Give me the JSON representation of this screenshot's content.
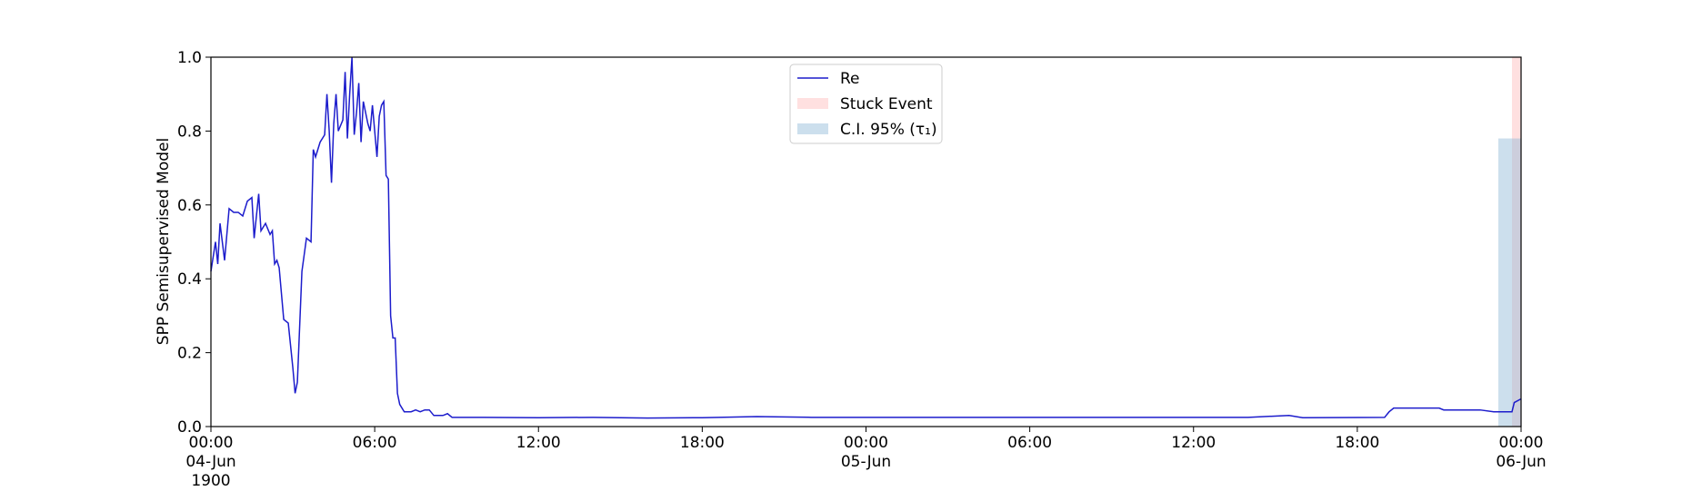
{
  "chart_data": {
    "type": "line",
    "ylabel": "SPP Semisupervised Model",
    "x": [
      "1900-06-04 00:00",
      "1900-06-04 00:10",
      "1900-06-04 00:15",
      "1900-06-04 00:20",
      "1900-06-04 00:30",
      "1900-06-04 00:40",
      "1900-06-04 00:50",
      "1900-06-04 01:00",
      "1900-06-04 01:10",
      "1900-06-04 01:20",
      "1900-06-04 01:30",
      "1900-06-04 01:35",
      "1900-06-04 01:45",
      "1900-06-04 01:50",
      "1900-06-04 02:00",
      "1900-06-04 02:10",
      "1900-06-04 02:15",
      "1900-06-04 02:20",
      "1900-06-04 02:25",
      "1900-06-04 02:30",
      "1900-06-04 02:40",
      "1900-06-04 02:50",
      "1900-06-04 03:00",
      "1900-06-04 03:05",
      "1900-06-04 03:10",
      "1900-06-04 03:20",
      "1900-06-04 03:30",
      "1900-06-04 03:40",
      "1900-06-04 03:45",
      "1900-06-04 03:50",
      "1900-06-04 04:00",
      "1900-06-04 04:10",
      "1900-06-04 04:15",
      "1900-06-04 04:20",
      "1900-06-04 04:25",
      "1900-06-04 04:30",
      "1900-06-04 04:35",
      "1900-06-04 04:40",
      "1900-06-04 04:50",
      "1900-06-04 04:55",
      "1900-06-04 05:00",
      "1900-06-04 05:05",
      "1900-06-04 05:10",
      "1900-06-04 05:15",
      "1900-06-04 05:20",
      "1900-06-04 05:25",
      "1900-06-04 05:30",
      "1900-06-04 05:35",
      "1900-06-04 05:45",
      "1900-06-04 05:50",
      "1900-06-04 05:55",
      "1900-06-04 06:00",
      "1900-06-04 06:05",
      "1900-06-04 06:10",
      "1900-06-04 06:15",
      "1900-06-04 06:20",
      "1900-06-04 06:25",
      "1900-06-04 06:30",
      "1900-06-04 06:35",
      "1900-06-04 06:40",
      "1900-06-04 06:45",
      "1900-06-04 06:50",
      "1900-06-04 06:55",
      "1900-06-04 07:05",
      "1900-06-04 07:20",
      "1900-06-04 07:30",
      "1900-06-04 07:40",
      "1900-06-04 07:50",
      "1900-06-04 08:00",
      "1900-06-04 08:10",
      "1900-06-04 08:30",
      "1900-06-04 08:40",
      "1900-06-04 08:50",
      "1900-06-04 10:00",
      "1900-06-04 12:00",
      "1900-06-04 14:00",
      "1900-06-04 16:00",
      "1900-06-04 18:00",
      "1900-06-04 20:00",
      "1900-06-04 22:00",
      "1900-06-05 00:00",
      "1900-06-05 12:00",
      "1900-06-05 14:00",
      "1900-06-05 15:30",
      "1900-06-05 16:00",
      "1900-06-05 19:00",
      "1900-06-05 19:10",
      "1900-06-05 19:20",
      "1900-06-05 21:00",
      "1900-06-05 21:10",
      "1900-06-05 22:30",
      "1900-06-05 23:00",
      "1900-06-05 23:40",
      "1900-06-05 23:45",
      "1900-06-06 00:00"
    ],
    "series": [
      {
        "name": "Re",
        "color": "#1c1ccc",
        "values": [
          0.42,
          0.5,
          0.44,
          0.55,
          0.45,
          0.59,
          0.58,
          0.58,
          0.57,
          0.61,
          0.62,
          0.51,
          0.63,
          0.53,
          0.55,
          0.52,
          0.53,
          0.44,
          0.45,
          0.43,
          0.29,
          0.28,
          0.16,
          0.09,
          0.12,
          0.42,
          0.51,
          0.5,
          0.75,
          0.73,
          0.77,
          0.79,
          0.9,
          0.8,
          0.66,
          0.82,
          0.9,
          0.8,
          0.83,
          0.96,
          0.78,
          0.9,
          1.0,
          0.79,
          0.85,
          0.93,
          0.77,
          0.88,
          0.82,
          0.8,
          0.87,
          0.8,
          0.73,
          0.84,
          0.87,
          0.88,
          0.68,
          0.67,
          0.3,
          0.24,
          0.24,
          0.09,
          0.06,
          0.04,
          0.04,
          0.045,
          0.04,
          0.045,
          0.045,
          0.03,
          0.03,
          0.035,
          0.025,
          0.025,
          0.024,
          0.025,
          0.023,
          0.024,
          0.027,
          0.025,
          0.025,
          0.025,
          0.025,
          0.03,
          0.024,
          0.025,
          0.04,
          0.05,
          0.05,
          0.045,
          0.045,
          0.04,
          0.04,
          0.065,
          0.075
        ]
      }
    ],
    "spans": [
      {
        "name": "Stuck Event",
        "color": "#ffcccc",
        "x": [
          "1900-06-05 23:40",
          "1900-06-06 00:00"
        ],
        "values": [
          0,
          1.0
        ]
      },
      {
        "name": "C.I. 95% (τ₁)",
        "color": "#8fb8d8",
        "x": [
          "1900-06-05 23:10",
          "1900-06-06 00:00"
        ],
        "values": [
          0,
          0.78
        ]
      }
    ],
    "xlim": [
      "1900-06-04 00:00",
      "1900-06-06 00:00"
    ],
    "xticks": [
      {
        "value": "1900-06-04 00:00",
        "label": "00:00\n04-Jun\n1900"
      },
      {
        "value": "1900-06-04 06:00",
        "label": "06:00"
      },
      {
        "value": "1900-06-04 12:00",
        "label": "12:00"
      },
      {
        "value": "1900-06-04 18:00",
        "label": "18:00"
      },
      {
        "value": "1900-06-05 00:00",
        "label": "00:00\n05-Jun"
      },
      {
        "value": "1900-06-05 06:00",
        "label": "06:00"
      },
      {
        "value": "1900-06-05 12:00",
        "label": "12:00"
      },
      {
        "value": "1900-06-05 18:00",
        "label": "18:00"
      },
      {
        "value": "1900-06-06 00:00",
        "label": "00:00\n06-Jun"
      }
    ],
    "ylim": [
      0,
      1.0
    ],
    "yticks": [
      {
        "value": 0,
        "label": "0.0"
      },
      0.2,
      0.4,
      0.6,
      0.8,
      {
        "value": 1.0,
        "label": "1.0"
      }
    ],
    "legend": "upper center"
  }
}
